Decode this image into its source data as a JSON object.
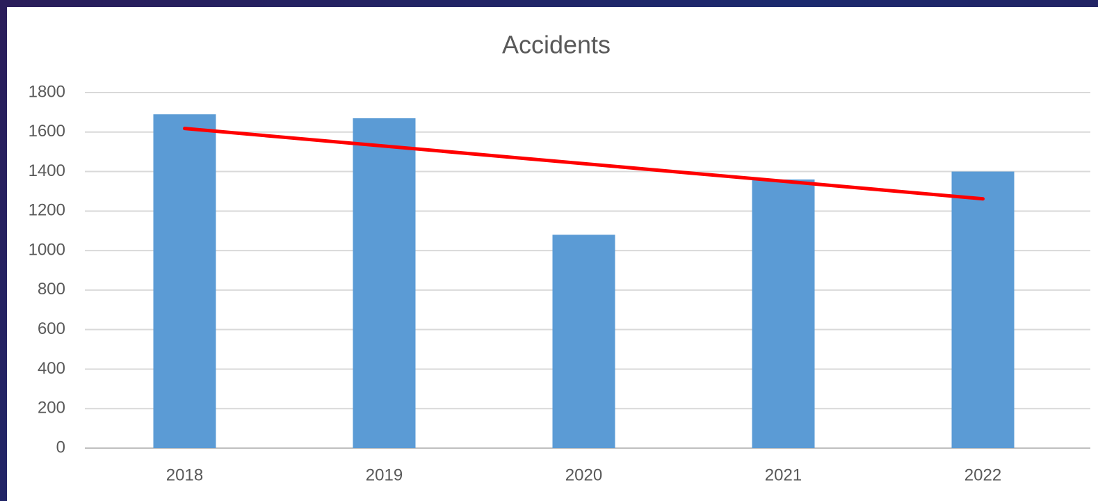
{
  "chart_data": {
    "type": "bar",
    "title": "Accidents",
    "categories": [
      "2018",
      "2019",
      "2020",
      "2021",
      "2022"
    ],
    "values": [
      1690,
      1670,
      1080,
      1360,
      1400
    ],
    "color": "#5b9bd5",
    "ylim": [
      0,
      1800
    ],
    "yticks": [
      0,
      200,
      400,
      600,
      800,
      1000,
      1200,
      1400,
      1600,
      1800
    ],
    "grid": true,
    "trendline": {
      "color": "#ff0000",
      "values": [
        1618,
        1262
      ]
    }
  }
}
